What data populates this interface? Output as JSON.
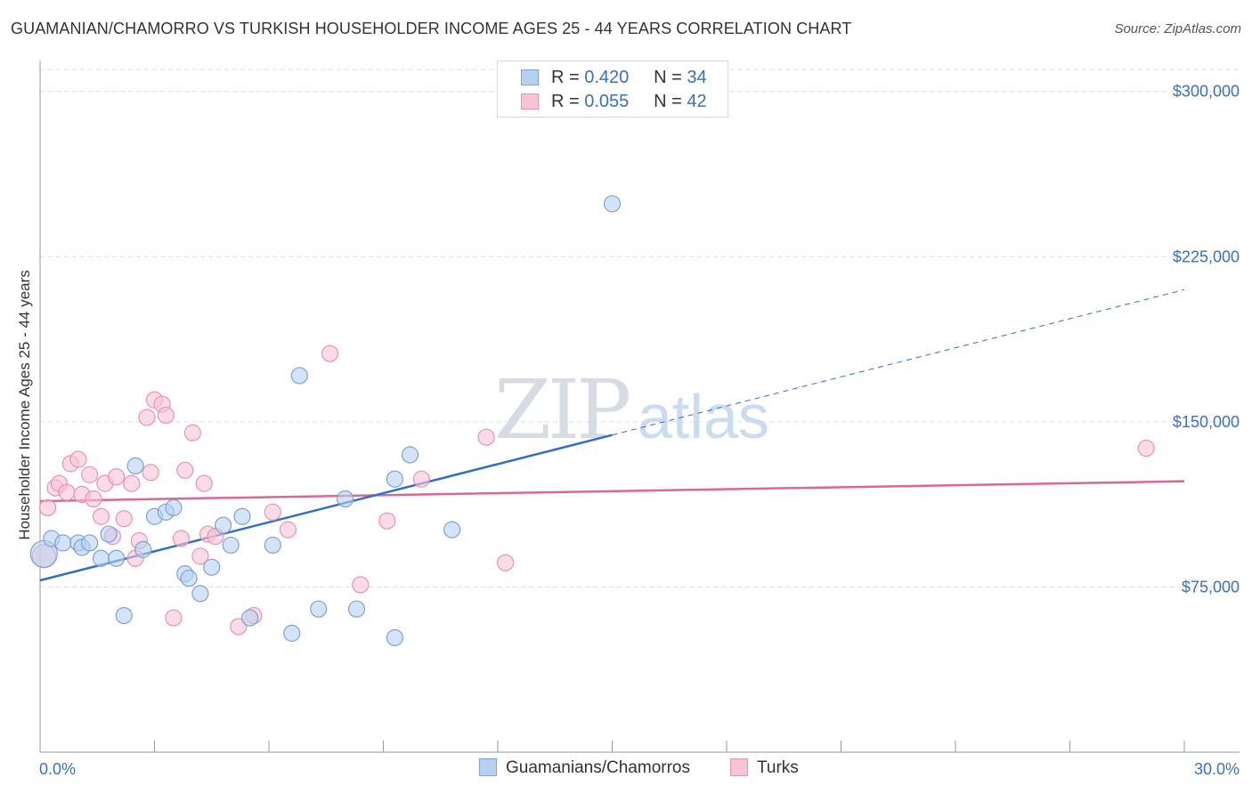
{
  "title": "GUAMANIAN/CHAMORRO VS TURKISH HOUSEHOLDER INCOME AGES 25 - 44 YEARS CORRELATION CHART",
  "source": "Source: ZipAtlas.com",
  "watermark": {
    "zip": "ZIP",
    "atlas": "atlas"
  },
  "legend": {
    "rows": [
      {
        "r_label": "R =",
        "r_value": "0.420",
        "n_label": "N =",
        "n_value": "34"
      },
      {
        "r_label": "R =",
        "r_value": "0.055",
        "n_label": "N =",
        "n_value": "42"
      }
    ]
  },
  "bottom_legend": {
    "series1": "Guamanians/Chamorros",
    "series2": "Turks"
  },
  "colors": {
    "series1_fill": "#b8d0f0",
    "series1_stroke": "#7aa3db",
    "series1_line": "#2f6fcc",
    "series2_fill": "#f8c3d3",
    "series2_stroke": "#ea93ae",
    "series2_line": "#e0668f",
    "tick_label": "#3a6fc4",
    "grid": "#dddddd"
  },
  "chart_data": {
    "type": "scatter",
    "title": "GUAMANIAN/CHAMORRO VS TURKISH HOUSEHOLDER INCOME AGES 25 - 44 YEARS CORRELATION CHART",
    "xlabel": "",
    "ylabel": "Householder Income Ages 25 - 44 years",
    "xlim": [
      0,
      30
    ],
    "ylim": [
      0,
      310000
    ],
    "x_tick_labels": [
      "0.0%",
      "30.0%"
    ],
    "y_ticks": [
      75000,
      150000,
      225000,
      300000
    ],
    "y_tick_labels": [
      "$75,000",
      "$150,000",
      "$225,000",
      "$300,000"
    ],
    "series": [
      {
        "name": "Guamanians/Chamorros",
        "r": 0.42,
        "n": 34,
        "points": [
          [
            0.1,
            90000
          ],
          [
            0.3,
            97000
          ],
          [
            0.6,
            95000
          ],
          [
            1.0,
            95000
          ],
          [
            1.1,
            93000
          ],
          [
            1.3,
            95000
          ],
          [
            1.6,
            88000
          ],
          [
            1.8,
            99000
          ],
          [
            2.0,
            88000
          ],
          [
            2.2,
            62000
          ],
          [
            2.5,
            130000
          ],
          [
            2.7,
            92000
          ],
          [
            3.0,
            107000
          ],
          [
            3.3,
            109000
          ],
          [
            3.5,
            111000
          ],
          [
            3.8,
            81000
          ],
          [
            3.9,
            79000
          ],
          [
            4.2,
            72000
          ],
          [
            4.5,
            84000
          ],
          [
            4.8,
            103000
          ],
          [
            5.0,
            94000
          ],
          [
            5.3,
            107000
          ],
          [
            5.5,
            61000
          ],
          [
            6.1,
            94000
          ],
          [
            6.6,
            54000
          ],
          [
            6.8,
            171000
          ],
          [
            7.3,
            65000
          ],
          [
            8.0,
            115000
          ],
          [
            8.3,
            65000
          ],
          [
            9.3,
            124000
          ],
          [
            9.3,
            52000
          ],
          [
            9.7,
            135000
          ],
          [
            10.8,
            101000
          ],
          [
            15.0,
            249000
          ]
        ],
        "trend": {
          "x1": 0,
          "y1": 78000,
          "x2": 15,
          "y2": 144000,
          "dashed_to_x": 30,
          "dashed_to_y": 210000
        }
      },
      {
        "name": "Turks",
        "r": 0.055,
        "n": 42,
        "points": [
          [
            0.1,
            89000
          ],
          [
            0.2,
            111000
          ],
          [
            0.4,
            120000
          ],
          [
            0.5,
            122000
          ],
          [
            0.7,
            118000
          ],
          [
            0.8,
            131000
          ],
          [
            1.0,
            133000
          ],
          [
            1.1,
            117000
          ],
          [
            1.3,
            126000
          ],
          [
            1.4,
            115000
          ],
          [
            1.6,
            107000
          ],
          [
            1.7,
            122000
          ],
          [
            1.9,
            98000
          ],
          [
            2.0,
            125000
          ],
          [
            2.2,
            106000
          ],
          [
            2.4,
            122000
          ],
          [
            2.5,
            88000
          ],
          [
            2.6,
            96000
          ],
          [
            2.8,
            152000
          ],
          [
            2.9,
            127000
          ],
          [
            3.0,
            160000
          ],
          [
            3.2,
            158000
          ],
          [
            3.3,
            153000
          ],
          [
            3.5,
            61000
          ],
          [
            3.7,
            97000
          ],
          [
            3.8,
            128000
          ],
          [
            4.0,
            145000
          ],
          [
            4.2,
            89000
          ],
          [
            4.3,
            122000
          ],
          [
            4.4,
            99000
          ],
          [
            4.6,
            98000
          ],
          [
            5.2,
            57000
          ],
          [
            5.6,
            62000
          ],
          [
            6.1,
            109000
          ],
          [
            6.5,
            101000
          ],
          [
            7.6,
            181000
          ],
          [
            8.4,
            76000
          ],
          [
            9.1,
            105000
          ],
          [
            10.0,
            124000
          ],
          [
            11.7,
            143000
          ],
          [
            12.2,
            86000
          ],
          [
            29.0,
            138000
          ]
        ],
        "trend": {
          "x1": 0,
          "y1": 114000,
          "x2": 30,
          "y2": 123000
        }
      }
    ]
  }
}
